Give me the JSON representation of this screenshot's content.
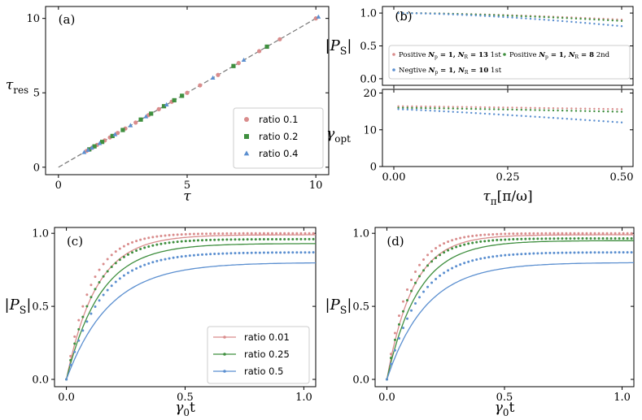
{
  "colors": {
    "red": "#d98c8c",
    "green": "#3f8f3f",
    "blue": "#5b8fd0",
    "gray": "#777777"
  },
  "chart_data": [
    {
      "id": "a",
      "type": "scatter",
      "panel_label": "(a)",
      "xlabel": "τ",
      "ylabel": "τ",
      "ylabel_sub": "res",
      "xlim": [
        -0.5,
        10.5
      ],
      "ylim": [
        -0.5,
        10.8
      ],
      "xticks": [
        0,
        5,
        10
      ],
      "yticks": [
        0,
        5,
        10
      ],
      "xtick_labels": [
        "0",
        "5",
        "10"
      ],
      "ytick_labels": [
        "0",
        "5",
        "10"
      ],
      "diagonal": [
        [
          0,
          0
        ],
        [
          10.1,
          10.1
        ]
      ],
      "legend": [
        "ratio 0.1",
        "ratio 0.2",
        "ratio 0.4"
      ],
      "series": [
        {
          "name": "ratio 0.1",
          "color": "red",
          "marker": "circle",
          "x": [
            1.1,
            1.3,
            1.5,
            1.8,
            2.0,
            2.3,
            2.6,
            3.0,
            3.5,
            3.9,
            4.4,
            5.0,
            5.5,
            6.2,
            7.0,
            7.8,
            8.6,
            10.0
          ],
          "y": [
            1.1,
            1.3,
            1.5,
            1.8,
            2.0,
            2.3,
            2.6,
            3.0,
            3.5,
            3.9,
            4.4,
            5.0,
            5.5,
            6.2,
            7.0,
            7.8,
            8.6,
            10.0
          ]
        },
        {
          "name": "ratio 0.2",
          "color": "green",
          "marker": "square",
          "x": [
            1.2,
            1.4,
            1.7,
            2.1,
            2.5,
            3.2,
            3.6,
            4.1,
            4.5,
            4.8,
            6.8,
            8.1
          ],
          "y": [
            1.2,
            1.4,
            1.7,
            2.1,
            2.5,
            3.2,
            3.6,
            4.1,
            4.5,
            4.8,
            6.8,
            8.1
          ]
        },
        {
          "name": "ratio 0.4",
          "color": "blue",
          "marker": "triangle",
          "x": [
            1.0,
            1.15,
            1.3,
            1.6,
            2.2,
            2.8,
            3.4,
            4.2,
            6.0,
            7.2,
            10.1
          ],
          "y": [
            1.0,
            1.15,
            1.3,
            1.6,
            2.2,
            2.8,
            3.4,
            4.2,
            6.0,
            7.2,
            10.1
          ]
        }
      ]
    },
    {
      "id": "b_top",
      "type": "scatter",
      "panel_label": "(b)",
      "ylabel": "|P",
      "ylabel_sub": "S",
      "ylabel_end": "|",
      "xlim": [
        -0.025,
        0.525
      ],
      "ylim": [
        -0.1,
        1.1
      ],
      "yticks": [
        0,
        0.5,
        1
      ],
      "ytick_labels": [
        "0.0",
        "0.5",
        "1.0"
      ],
      "legend": [
        {
          "color": "red",
          "prefix": "Positive",
          "np": "N",
          "np_sub": "p",
          "np_val": " = 1, ",
          "nr": "N",
          "nr_sub": "R",
          "nr_val": " = 13",
          "suffix": "1st"
        },
        {
          "color": "green",
          "prefix": "Positive",
          "np": "N",
          "np_sub": "p",
          "np_val": " = 1, ",
          "nr": "N",
          "nr_sub": "R",
          "nr_val": " = 8",
          "suffix": "2nd"
        },
        {
          "color": "blue",
          "prefix": "Negtive",
          "np": "N",
          "np_sub": "p",
          "np_val": " = 1, ",
          "nr": "N",
          "nr_sub": "R",
          "nr_val": " = 10",
          "suffix": "1st"
        }
      ],
      "series": [
        {
          "name": "Positive Np=1, NR=13 1st",
          "color": "red",
          "x_start": 0.01,
          "x_end": 0.5,
          "n": 50,
          "y_start": 1.0,
          "y_end": 0.9
        },
        {
          "name": "Positive Np=1, NR=8 2nd",
          "color": "green",
          "x_start": 0.01,
          "x_end": 0.5,
          "n": 50,
          "y_start": 1.0,
          "y_end": 0.88
        },
        {
          "name": "Negtive Np=1, NR=10 1st",
          "color": "blue",
          "x_start": 0.01,
          "x_end": 0.5,
          "n": 50,
          "y_start": 1.0,
          "y_end": 0.8
        }
      ]
    },
    {
      "id": "b_bottom",
      "type": "scatter",
      "ylabel": "γ",
      "ylabel_sub": "opt",
      "xlabel": "τ",
      "xlabel_sub": "π",
      "xlabel_end": "[π/ω]",
      "xlim": [
        -0.025,
        0.525
      ],
      "ylim": [
        0,
        21
      ],
      "xticks": [
        0,
        0.25,
        0.5
      ],
      "xtick_labels": [
        "0.00",
        "0.25",
        "0.50"
      ],
      "yticks": [
        0,
        10,
        20
      ],
      "ytick_labels": [
        "0",
        "10",
        "20"
      ],
      "series": [
        {
          "name": "Positive Np=1, NR=13 1st",
          "color": "red",
          "x_start": 0.01,
          "x_end": 0.5,
          "n": 50,
          "y_start": 16.4,
          "y_end": 15.6
        },
        {
          "name": "Positive Np=1, NR=8 2nd",
          "color": "green",
          "x_start": 0.01,
          "x_end": 0.5,
          "n": 50,
          "y_start": 16.0,
          "y_end": 14.9
        },
        {
          "name": "Negtive Np=1, NR=10 1st",
          "color": "blue",
          "x_start": 0.01,
          "x_end": 0.5,
          "n": 50,
          "y_start": 15.6,
          "y_end": 12.0
        }
      ]
    },
    {
      "id": "c",
      "type": "line",
      "panel_label": "(c)",
      "xlabel": "γ",
      "xlabel_sub": "0",
      "xlabel_end": "t",
      "ylabel": "|P",
      "ylabel_sub": "S",
      "ylabel_end": "|",
      "xlim": [
        -0.05,
        1.05
      ],
      "ylim": [
        -0.05,
        1.04
      ],
      "xticks": [
        0,
        0.5,
        1
      ],
      "yticks": [
        0,
        0.5,
        1
      ],
      "xtick_labels": [
        "0.0",
        "0.5",
        "1.0"
      ],
      "ytick_labels": [
        "0.0",
        "0.5",
        "1.0"
      ],
      "legend": [
        "ratio 0.01",
        "ratio 0.25",
        "ratio 0.5"
      ],
      "series": [
        {
          "name": "ratio 0.01",
          "color": "red",
          "line_sat": 0.99,
          "line_rate": 16,
          "dot_sat": 1.0,
          "dot_rate": 20
        },
        {
          "name": "ratio 0.25",
          "color": "green",
          "line_sat": 0.93,
          "line_rate": 14,
          "dot_sat": 0.96,
          "dot_rate": 17
        },
        {
          "name": "ratio 0.5",
          "color": "blue",
          "line_sat": 0.8,
          "line_rate": 11,
          "dot_sat": 0.87,
          "dot_rate": 14
        }
      ]
    },
    {
      "id": "d",
      "type": "line",
      "panel_label": "(d)",
      "xlabel": "γ",
      "xlabel_sub": "0",
      "xlabel_end": "t",
      "ylabel": "|P",
      "ylabel_sub": "S",
      "ylabel_end": "|",
      "xlim": [
        -0.05,
        1.05
      ],
      "ylim": [
        -0.05,
        1.04
      ],
      "xticks": [
        0,
        0.5,
        1
      ],
      "yticks": [
        0,
        0.5,
        1
      ],
      "xtick_labels": [
        "0.0",
        "0.5",
        "1.0"
      ],
      "ytick_labels": [
        "0.0",
        "0.5",
        "1.0"
      ],
      "series": [
        {
          "name": "ratio 0.01",
          "color": "red",
          "line_sat": 0.99,
          "line_rate": 18,
          "dot_sat": 1.0,
          "dot_rate": 22
        },
        {
          "name": "ratio 0.25",
          "color": "green",
          "line_sat": 0.95,
          "line_rate": 15,
          "dot_sat": 0.965,
          "dot_rate": 19
        },
        {
          "name": "ratio 0.5",
          "color": "blue",
          "line_sat": 0.8,
          "line_rate": 12,
          "dot_sat": 0.87,
          "dot_rate": 15
        }
      ]
    }
  ]
}
